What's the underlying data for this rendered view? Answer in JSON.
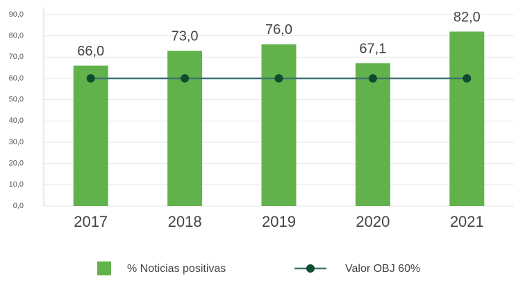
{
  "chart_data": {
    "type": "bar",
    "categories": [
      "2017",
      "2018",
      "2019",
      "2020",
      "2021"
    ],
    "series": [
      {
        "name": "% Noticias positivas",
        "color": "#62b24b",
        "values": [
          66.0,
          73.0,
          76.0,
          67.1,
          82.0
        ],
        "value_labels": [
          "66,0",
          "73,0",
          "76,0",
          "67,1",
          "82,0"
        ]
      },
      {
        "name": "Valor OBJ 60%",
        "type": "line",
        "color": "#3f7372",
        "marker_color": "#0e4b2f",
        "values": [
          60,
          60,
          60,
          60,
          60
        ]
      }
    ],
    "ylim": [
      0,
      90
    ],
    "yticks": [
      {
        "value": 0,
        "label": "0,0"
      },
      {
        "value": 10,
        "label": "10,0"
      },
      {
        "value": 20,
        "label": "20,0"
      },
      {
        "value": 30,
        "label": "30,0"
      },
      {
        "value": 40,
        "label": "40,0"
      },
      {
        "value": 50,
        "label": "50,0"
      },
      {
        "value": 60,
        "label": "60,0"
      },
      {
        "value": 70,
        "label": "70,0"
      },
      {
        "value": 80,
        "label": "80,0"
      },
      {
        "value": 90,
        "label": "90,0"
      }
    ],
    "grid": true,
    "legend": "bottom"
  }
}
